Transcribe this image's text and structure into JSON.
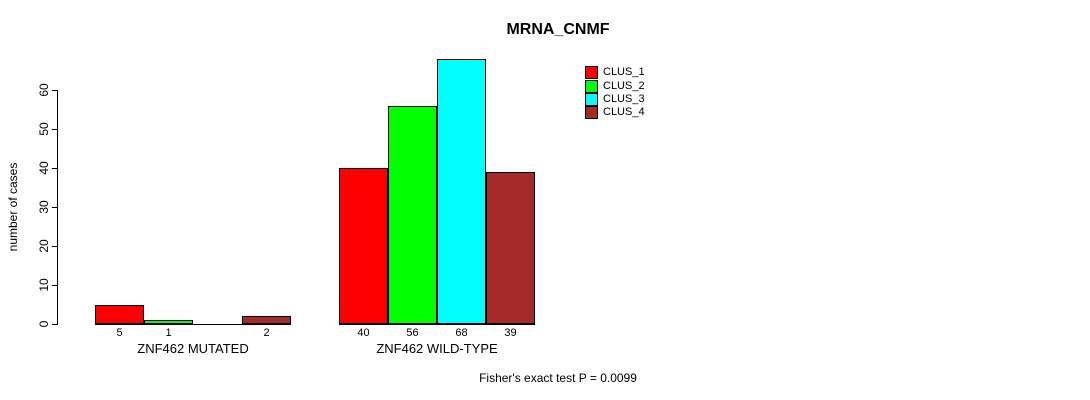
{
  "chart_data": {
    "type": "bar",
    "title": "MRNA_CNMF",
    "ylabel": "number of cases",
    "xlabel": "",
    "ylim": [
      0,
      68
    ],
    "yticks": [
      0,
      10,
      20,
      30,
      40,
      50,
      60
    ],
    "grid": false,
    "legend_position": "top-right",
    "categories": [
      "ZNF462 MUTATED",
      "ZNF462 WILD-TYPE"
    ],
    "series": [
      {
        "name": "CLUS_1",
        "color": "#FF0000",
        "values": [
          5,
          40
        ]
      },
      {
        "name": "CLUS_2",
        "color": "#00FF00",
        "values": [
          1,
          56
        ]
      },
      {
        "name": "CLUS_3",
        "color": "#00FFFF",
        "values": [
          0,
          68
        ]
      },
      {
        "name": "CLUS_4",
        "color": "#A52A2A",
        "values": [
          2,
          39
        ]
      }
    ],
    "bar_value_labels": {
      "shown": true,
      "hide_zero": true
    },
    "annotation": "Fisher's exact test P = 0.0099"
  }
}
